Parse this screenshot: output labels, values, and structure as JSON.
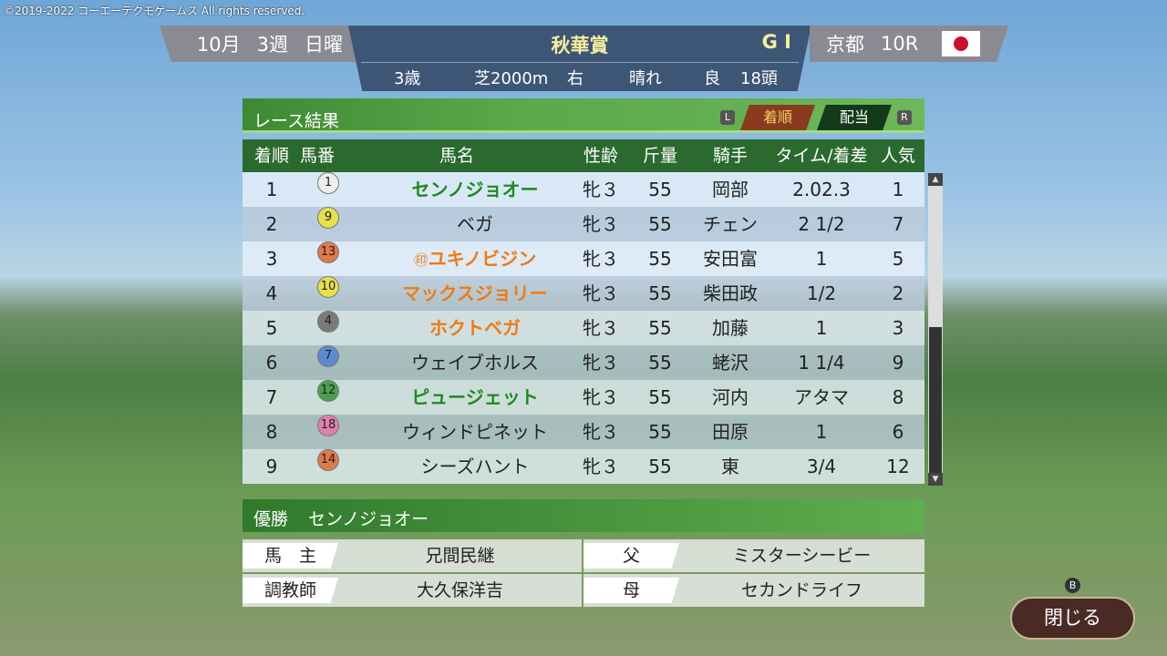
{
  "copyright": "©2019-2022 コーエーテクモゲームス All rights reserved.",
  "header": {
    "month": "10月",
    "week": "3週",
    "day": "日曜",
    "race_name": "秋華賞",
    "grade": "G I",
    "age": "3歳",
    "surface": "芝2000m",
    "direction": "右",
    "weather": "晴れ",
    "going": "良",
    "runners": "18頭",
    "course": "京都",
    "race_no": "10R"
  },
  "panel": {
    "title": "レース結果",
    "l_key": "L",
    "r_key": "R",
    "tab_order": "着順",
    "tab_payout": "配当",
    "active_tab": "着順"
  },
  "columns": [
    "着順",
    "馬番",
    "馬名",
    "性齢",
    "斤量",
    "騎手",
    "タイム/着差",
    "人気"
  ],
  "rows": [
    {
      "pos": "1",
      "num": "1",
      "gate_color": "#eeeeee",
      "mark": "",
      "name": "センノジョオー",
      "name_color": "#1f8a1f",
      "sexage": "牝３",
      "weight": "55",
      "jockey": "岡部",
      "margin": "2.02.3",
      "pop": "1"
    },
    {
      "pos": "2",
      "num": "9",
      "gate_color": "#e8e04a",
      "mark": "",
      "name": "ベガ",
      "name_color": "#222222",
      "sexage": "牝３",
      "weight": "55",
      "jockey": "チェン",
      "margin": "2 1/2",
      "pop": "7"
    },
    {
      "pos": "3",
      "num": "13",
      "gate_color": "#e07a4a",
      "mark": "㊞",
      "name": "ユキノビジン",
      "name_color": "#f07a10",
      "sexage": "牝３",
      "weight": "55",
      "jockey": "安田富",
      "margin": "1",
      "pop": "5"
    },
    {
      "pos": "4",
      "num": "10",
      "gate_color": "#e8e04a",
      "mark": "",
      "name": "マックスジョリー",
      "name_color": "#f07a10",
      "sexage": "牝３",
      "weight": "55",
      "jockey": "柴田政",
      "margin": "1/2",
      "pop": "2"
    },
    {
      "pos": "5",
      "num": "4",
      "gate_color": "#7a7a7a",
      "mark": "",
      "name": "ホクトベガ",
      "name_color": "#f07a10",
      "sexage": "牝３",
      "weight": "55",
      "jockey": "加藤",
      "margin": "1",
      "pop": "3"
    },
    {
      "pos": "6",
      "num": "7",
      "gate_color": "#5a8ad0",
      "mark": "",
      "name": "ウェイブホルス",
      "name_color": "#222222",
      "sexage": "牝３",
      "weight": "55",
      "jockey": "蛯沢",
      "margin": "1 1/4",
      "pop": "9"
    },
    {
      "pos": "7",
      "num": "12",
      "gate_color": "#4aa050",
      "mark": "",
      "name": "ピュージェット",
      "name_color": "#1f8a1f",
      "sexage": "牝３",
      "weight": "55",
      "jockey": "河内",
      "margin": "アタマ",
      "pop": "8"
    },
    {
      "pos": "8",
      "num": "18",
      "gate_color": "#e080b0",
      "mark": "",
      "name": "ウィンドピネット",
      "name_color": "#222222",
      "sexage": "牝３",
      "weight": "55",
      "jockey": "田原",
      "margin": "1",
      "pop": "6"
    },
    {
      "pos": "9",
      "num": "14",
      "gate_color": "#e07a4a",
      "mark": "",
      "name": "シーズハント",
      "name_color": "#222222",
      "sexage": "牝３",
      "weight": "55",
      "jockey": "東",
      "margin": "3/4",
      "pop": "12"
    }
  ],
  "winner": {
    "label": "優勝",
    "name": "センノジョオー",
    "owner_label": "馬　主",
    "owner": "兄間民継",
    "sire_label": "父",
    "sire": "ミスターシービー",
    "trainer_label": "調教師",
    "trainer": "大久保洋吉",
    "dam_label": "母",
    "dam": "セカンドライフ"
  },
  "close": {
    "key": "B",
    "label": "閉じる"
  }
}
